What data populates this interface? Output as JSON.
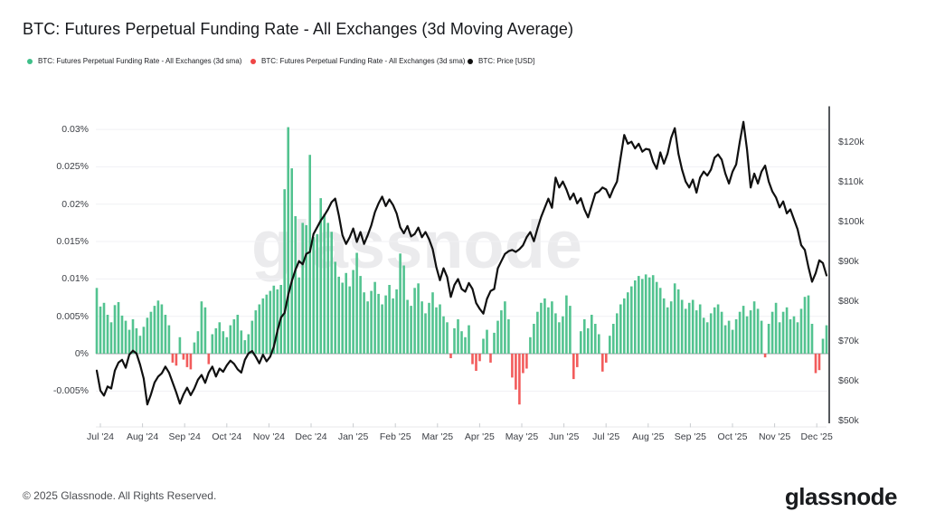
{
  "header": {
    "title": "BTC: Futures Perpetual Funding Rate - All Exchanges (3d Moving Average)"
  },
  "legend": [
    {
      "label": "BTC: Futures Perpetual Funding Rate - All Exchanges (3d sma)",
      "color": "#3fbf89"
    },
    {
      "label": "BTC: Futures Perpetual Funding Rate - All Exchanges (3d sma)",
      "color": "#ef4545"
    },
    {
      "label": "BTC: Price [USD]",
      "color": "#111111"
    }
  ],
  "watermark": "glassnode",
  "footer": {
    "copyright": "© 2025 Glassnode. All Rights Reserved.",
    "logo": "glassnode"
  },
  "chart_data": {
    "type": "mixed",
    "title": "BTC: Futures Perpetual Funding Rate - All Exchanges (3d Moving Average)",
    "grid": true,
    "x_axis": {
      "labels": [
        "Jul '24",
        "Aug '24",
        "Sep '24",
        "Oct '24",
        "Nov '24",
        "Dec '24",
        "Jan '25",
        "Feb '25",
        "Mar '25",
        "Apr '25",
        "May '25",
        "Jun '25",
        "Jul '25",
        "Aug '25",
        "Sep '25",
        "Oct '25",
        "Nov '25",
        "Dec '25"
      ]
    },
    "left_axis": {
      "unit": "%",
      "tick_labels": [
        "0.03%",
        "0.025%",
        "0.02%",
        "0.015%",
        "0.01%",
        "0.005%",
        "0%",
        "-0.005%"
      ],
      "tick_values": [
        0.03,
        0.025,
        0.02,
        0.015,
        0.01,
        0.005,
        0,
        -0.005
      ],
      "min": -0.0095,
      "max": 0.0331
    },
    "right_axis": {
      "unit": "USD",
      "tick_labels": [
        "$120k",
        "$110k",
        "$100k",
        "$90k",
        "$80k",
        "$70k",
        "$60k",
        "$50k"
      ],
      "tick_values_k": [
        120,
        110,
        100,
        90,
        80,
        70,
        60,
        50
      ],
      "min_k": 48.9,
      "max_k": 128.9
    },
    "series": [
      {
        "name": "BTC: Futures Perpetual Funding Rate - All Exchanges (3d sma)",
        "type": "bar",
        "unit": "%",
        "color_positive": "#53c390",
        "color_negative": "#f25c5c",
        "values": [
          0.0088,
          0.0063,
          0.0068,
          0.0052,
          0.0042,
          0.0065,
          0.0069,
          0.0051,
          0.0044,
          0.0032,
          0.0046,
          0.0034,
          0.0024,
          0.0036,
          0.0048,
          0.0056,
          0.0064,
          0.0071,
          0.0066,
          0.0052,
          0.0038,
          -0.0012,
          -0.0016,
          0.0022,
          -0.0008,
          -0.0018,
          -0.0021,
          0.0015,
          0.003,
          0.007,
          0.0062,
          -0.0014,
          0.0026,
          0.0034,
          0.0042,
          0.003,
          0.0022,
          0.0038,
          0.0046,
          0.0052,
          0.0031,
          0.0018,
          0.0026,
          0.0044,
          0.0058,
          0.0066,
          0.0074,
          0.0079,
          0.0084,
          0.0091,
          0.0086,
          0.0092,
          0.022,
          0.0303,
          0.0248,
          0.0184,
          0.0102,
          0.0175,
          0.0172,
          0.0266,
          0.0156,
          0.016,
          0.0208,
          0.0187,
          0.0175,
          0.0163,
          0.0123,
          0.0103,
          0.0095,
          0.0108,
          0.009,
          0.0112,
          0.0135,
          0.0104,
          0.0082,
          0.007,
          0.0084,
          0.0096,
          0.008,
          0.0066,
          0.0078,
          0.0092,
          0.0074,
          0.0086,
          0.0134,
          0.0118,
          0.0072,
          0.0064,
          0.0088,
          0.0094,
          0.007,
          0.0054,
          0.0068,
          0.0082,
          0.0062,
          0.0066,
          0.005,
          0.0042,
          -0.0006,
          0.0034,
          0.0046,
          0.003,
          0.0022,
          0.0038,
          -0.0014,
          -0.0023,
          -0.001,
          0.002,
          0.0032,
          -0.0012,
          0.0028,
          0.0044,
          0.0058,
          0.007,
          0.0046,
          -0.0032,
          -0.0048,
          -0.0068,
          -0.0026,
          -0.002,
          0.0022,
          0.004,
          0.0056,
          0.0068,
          0.0074,
          0.0062,
          0.007,
          0.0054,
          0.0042,
          0.005,
          0.0078,
          0.0064,
          -0.0034,
          -0.0018,
          0.003,
          0.0046,
          0.0034,
          0.0052,
          0.004,
          0.0026,
          -0.0024,
          -0.0012,
          0.0024,
          0.004,
          0.0054,
          0.0066,
          0.0074,
          0.0082,
          0.009,
          0.0098,
          0.0104,
          0.01,
          0.0106,
          0.0102,
          0.0105,
          0.0096,
          0.0088,
          0.0074,
          0.0062,
          0.007,
          0.0094,
          0.0086,
          0.0072,
          0.006,
          0.0068,
          0.0072,
          0.0058,
          0.0066,
          0.0048,
          0.0042,
          0.0054,
          0.0062,
          0.0066,
          0.0056,
          0.0038,
          0.0044,
          0.0032,
          0.0046,
          0.0056,
          0.0064,
          0.005,
          0.0058,
          0.007,
          0.006,
          0.0044,
          -0.0005,
          0.004,
          0.0056,
          0.0068,
          0.0042,
          0.0056,
          0.0062,
          0.0046,
          0.005,
          0.0042,
          0.006,
          0.0076,
          0.0078,
          0.004,
          -0.0026,
          -0.0022,
          0.002,
          0.0038
        ]
      },
      {
        "name": "BTC: Price [USD]",
        "type": "line",
        "unit": "USD thousands",
        "color": "#101010",
        "values_k": [
          62.5,
          57.5,
          56.2,
          58.5,
          58.0,
          62.5,
          64.5,
          65.2,
          63.2,
          66.5,
          67.5,
          66.8,
          64.0,
          60.5,
          54.0,
          56.5,
          59.5,
          61.0,
          61.8,
          63.5,
          62.0,
          59.5,
          57.0,
          54.2,
          56.5,
          58.2,
          56.3,
          58.0,
          60.2,
          61.4,
          59.4,
          62.0,
          63.5,
          61.0,
          63.0,
          62.2,
          63.8,
          65.0,
          64.2,
          62.8,
          62.0,
          65.2,
          66.8,
          67.4,
          66.0,
          64.3,
          66.5,
          64.8,
          66.0,
          68.5,
          72.5,
          75.8,
          77.0,
          81.5,
          85.0,
          87.8,
          90.0,
          89.2,
          91.8,
          92.3,
          96.8,
          98.5,
          100.2,
          101.5,
          103.0,
          104.8,
          105.7,
          101.5,
          96.5,
          94.3,
          96.0,
          98.2,
          94.8,
          97.3,
          94.3,
          96.5,
          99.0,
          102.3,
          104.5,
          106.2,
          103.8,
          105.5,
          104.1,
          102.0,
          98.5,
          97.0,
          98.8,
          96.2,
          96.8,
          98.4,
          96.0,
          97.3,
          95.5,
          93.0,
          88.5,
          85.2,
          88.2,
          86.0,
          81.0,
          84.0,
          85.5,
          83.0,
          82.3,
          84.5,
          83.0,
          79.5,
          78.0,
          76.8,
          80.5,
          82.5,
          83.0,
          88.2,
          90.0,
          91.8,
          92.5,
          92.8,
          92.3,
          93.0,
          94.0,
          96.0,
          97.3,
          95.0,
          98.2,
          101.1,
          103.4,
          105.7,
          103.4,
          111.0,
          108.5,
          110.0,
          108.0,
          105.5,
          107.0,
          104.5,
          105.8,
          103.0,
          101.0,
          104.0,
          107.0,
          107.5,
          108.5,
          108.0,
          106.0,
          108.2,
          110.0,
          116.0,
          121.7,
          119.5,
          120.0,
          118.3,
          119.5,
          117.5,
          118.2,
          118.0,
          115.0,
          113.2,
          117.3,
          114.5,
          117.0,
          121.0,
          123.4,
          117.0,
          113.0,
          110.0,
          108.5,
          110.5,
          107.2,
          111.0,
          112.5,
          111.5,
          113.0,
          116.0,
          116.8,
          115.5,
          112.0,
          109.5,
          112.5,
          114.3,
          120.0,
          125.0,
          118.0,
          108.5,
          112.0,
          109.5,
          112.5,
          114.0,
          110.0,
          107.5,
          106.0,
          103.5,
          105.0,
          102.0,
          103.0,
          100.5,
          98.0,
          94.0,
          92.8,
          88.5,
          84.8,
          87.0,
          90.2,
          89.5,
          86.4
        ]
      }
    ],
    "style": {
      "gridline_color": "#f0f1f4",
      "zero_line_color": "#9b9ea3",
      "right_axis_line_color": "#55585c",
      "bottom_axis_line_color": "#e8e9eb",
      "tick_color": "#c9ccd0"
    }
  }
}
